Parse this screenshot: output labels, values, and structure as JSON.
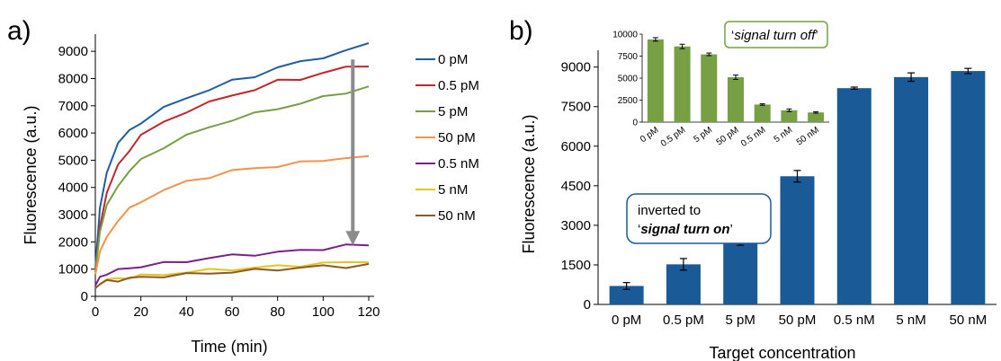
{
  "panels": {
    "a_label": "a)",
    "b_label": "b)"
  },
  "chart_data": [
    {
      "type": "line",
      "xlabel": "Time (min)",
      "ylabel": "Fluorescence (a.u.)",
      "xlim": [
        0,
        120
      ],
      "ylim": [
        0,
        9500
      ],
      "xticks": [
        0,
        20,
        40,
        60,
        80,
        100,
        120
      ],
      "yticks": [
        0,
        1000,
        2000,
        3000,
        4000,
        5000,
        6000,
        7000,
        8000,
        9000
      ],
      "grid": false,
      "legend_position": "right",
      "x": [
        0,
        2,
        5,
        10,
        15,
        20,
        30,
        40,
        50,
        60,
        70,
        80,
        90,
        100,
        110,
        120
      ],
      "series": [
        {
          "name": "0 pM",
          "color": "#1f5fa0",
          "values": [
            1000,
            3200,
            4600,
            5600,
            6100,
            6400,
            6900,
            7300,
            7600,
            7900,
            8100,
            8400,
            8600,
            8800,
            9000,
            9300
          ]
        },
        {
          "name": "0.5 pM",
          "color": "#c0272d",
          "values": [
            900,
            2600,
            3800,
            4800,
            5400,
            5900,
            6400,
            6800,
            7100,
            7400,
            7600,
            7900,
            8000,
            8200,
            8400,
            8500
          ]
        },
        {
          "name": "5 pM",
          "color": "#77a045",
          "values": [
            900,
            2400,
            3300,
            4100,
            4600,
            5000,
            5500,
            5900,
            6200,
            6500,
            6700,
            6900,
            7100,
            7300,
            7500,
            7700
          ]
        },
        {
          "name": "50 pM",
          "color": "#f59247",
          "values": [
            800,
            1600,
            2200,
            2800,
            3200,
            3500,
            3900,
            4200,
            4400,
            4600,
            4700,
            4800,
            4900,
            5000,
            5100,
            5100
          ]
        },
        {
          "name": "0.5 nM",
          "color": "#7b1f8e",
          "values": [
            400,
            700,
            850,
            950,
            1050,
            1100,
            1200,
            1300,
            1400,
            1500,
            1550,
            1600,
            1700,
            1750,
            1850,
            1900
          ]
        },
        {
          "name": "5 nM",
          "color": "#e6c51c",
          "values": [
            300,
            500,
            600,
            650,
            700,
            750,
            800,
            900,
            950,
            1000,
            1050,
            1100,
            1150,
            1200,
            1250,
            1300
          ]
        },
        {
          "name": "50 nM",
          "color": "#8b5a2b",
          "values": [
            300,
            450,
            550,
            600,
            650,
            700,
            750,
            800,
            850,
            900,
            950,
            1000,
            1050,
            1100,
            1100,
            1150
          ]
        }
      ],
      "arrow": {
        "x": 113,
        "y_from": 8700,
        "y_to": 2200
      }
    },
    {
      "type": "bar",
      "xlabel": "Target concentration",
      "ylabel": "Fluorescence (a.u.)",
      "ylim": [
        0,
        9500
      ],
      "yticks": [
        0,
        1500,
        3000,
        4500,
        6000,
        7500,
        9000
      ],
      "grid": false,
      "color": "#1a5a96",
      "categories": [
        "0 pM",
        "0.5 pM",
        "5 pM",
        "50 pM",
        "0.5 nM",
        "5 nM",
        "50 nM"
      ],
      "values": [
        700,
        1520,
        2380,
        4860,
        8200,
        8620,
        8850
      ],
      "errors": [
        130,
        220,
        140,
        220,
        40,
        160,
        100
      ],
      "annotation": {
        "line1": "inverted to",
        "line2_prefix": "‘",
        "line2_emph": "signal turn on",
        "line2_suffix": "’"
      }
    },
    {
      "type": "bar",
      "inset": true,
      "ylim": [
        0,
        10000
      ],
      "yticks": [
        0,
        2500,
        5000,
        7500,
        10000
      ],
      "grid": false,
      "color": "#77a045",
      "categories": [
        "0 pM",
        "0.5 pM",
        "5 pM",
        "50 pM",
        "0.5 nM",
        "5 nM",
        "50 nM"
      ],
      "values": [
        9400,
        8600,
        7700,
        5100,
        2000,
        1350,
        1100
      ],
      "errors": [
        200,
        250,
        150,
        250,
        80,
        150,
        80
      ],
      "annotation": {
        "prefix": "‘",
        "emph": "signal turn off",
        "suffix": "’"
      }
    }
  ]
}
